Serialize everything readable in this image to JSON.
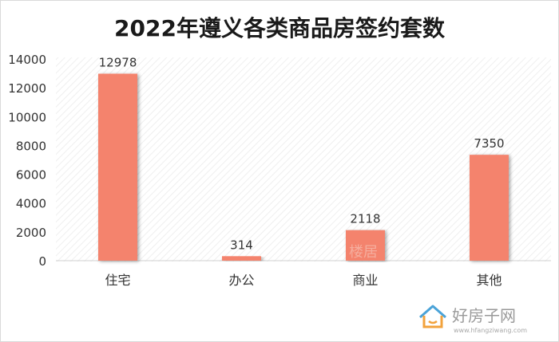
{
  "chart_data": {
    "type": "bar",
    "title": "2022年遵义各类商品房签约套数",
    "categories": [
      "住宅",
      "办公",
      "商业",
      "其他"
    ],
    "values": [
      12978,
      314,
      2118,
      7350
    ],
    "data_labels": [
      "12978",
      "314",
      "2118",
      "7350"
    ],
    "y_ticks": [
      "0",
      "2000",
      "4000",
      "6000",
      "8000",
      "10000",
      "12000",
      "14000"
    ],
    "y_tick_values": [
      0,
      2000,
      4000,
      6000,
      8000,
      10000,
      12000,
      14000
    ],
    "ylim": [
      0,
      14000
    ],
    "xlabel": "",
    "ylabel": "",
    "grid": false,
    "legend": "none",
    "bar_color": "#f4836d",
    "plot_background": "hatched light gray"
  },
  "watermark": {
    "center_text": "楼居",
    "brand_text": "好房子网",
    "brand_url": "www.hfangziwang.com"
  }
}
